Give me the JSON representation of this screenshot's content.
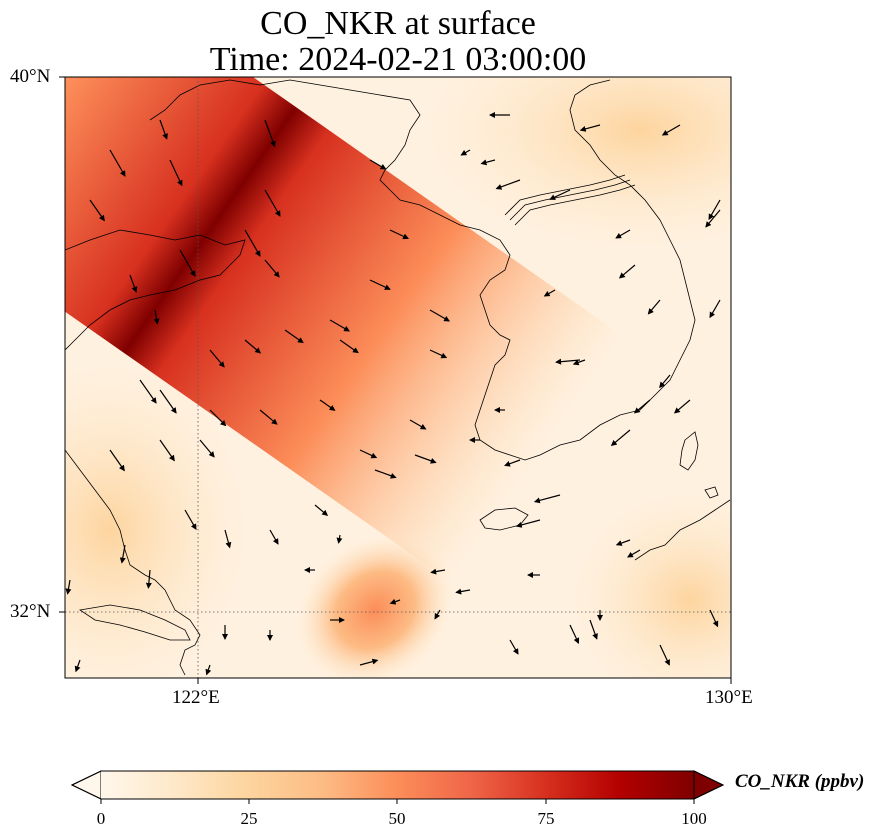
{
  "title": {
    "line1": "CO_NKR at surface",
    "line2": "Time: 2024-02-21 03:00:00"
  },
  "map": {
    "projection": "PlateCarree",
    "lon_range": [
      119,
      130
    ],
    "lat_range": [
      31,
      40
    ],
    "gridlines": {
      "lon": [
        122
      ],
      "lat": [
        32
      ],
      "style": "dotted"
    },
    "lat_ticks": [
      {
        "label": "40°N",
        "value": 40
      },
      {
        "label": "32°N",
        "value": 32
      }
    ],
    "lon_ticks": [
      {
        "label": "122°E",
        "value": 122
      },
      {
        "label": "130°E",
        "value": 130
      }
    ],
    "field": "CO_NKR",
    "units": "ppbv",
    "level": "surface",
    "colormap": "OrRd",
    "features": [
      "coastlines",
      "wind-vectors"
    ],
    "plume": {
      "description_values": {
        "max": 100,
        "background": 5
      }
    }
  },
  "colorbar": {
    "label": "CO_NKR (ppbv)",
    "min": 0,
    "max": 100,
    "extend": "both",
    "ticks": [
      "0",
      "25",
      "50",
      "75",
      "100"
    ],
    "colors": [
      "#fff7ec",
      "#fee8c8",
      "#fdd49e",
      "#fdbb84",
      "#fc8d59",
      "#ef6548",
      "#d7301f",
      "#b30000",
      "#7f0000"
    ]
  }
}
